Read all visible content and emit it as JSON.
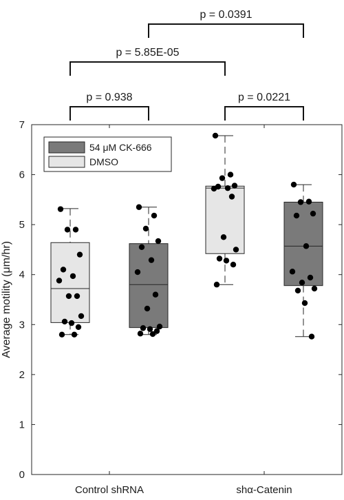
{
  "chart_data": {
    "type": "box",
    "title": "",
    "xlabel": "",
    "ylabel": "Average motility (μm/hr)",
    "ylim": [
      0,
      7
    ],
    "yticks": [
      0,
      1,
      2,
      3,
      4,
      5,
      6,
      7
    ],
    "categories": [
      "Control shRNA",
      "shα-Catenin"
    ],
    "legend": {
      "position": "top-left",
      "entries": [
        {
          "label": "54 μM CK-666",
          "color": "#7a7a7a"
        },
        {
          "label": "DMSO",
          "color": "#e6e6e6"
        }
      ]
    },
    "boxes": [
      {
        "category": "Control shRNA",
        "treatment": "DMSO",
        "color": "#e6e6e6",
        "whisker_low": 2.8,
        "q1": 3.04,
        "median": 3.72,
        "q3": 4.64,
        "whisker_high": 5.32,
        "points": [
          5.31,
          4.9,
          4.9,
          4.4,
          4.1,
          3.97,
          3.88,
          3.57,
          3.57,
          3.17,
          3.06,
          3.03,
          2.95,
          2.8,
          2.8
        ]
      },
      {
        "category": "Control shRNA",
        "treatment": "54 μM CK-666",
        "color": "#7a7a7a",
        "whisker_low": 2.8,
        "q1": 2.94,
        "median": 3.8,
        "q3": 4.62,
        "whisker_high": 5.35,
        "points": [
          5.35,
          5.18,
          4.92,
          4.67,
          4.55,
          4.29,
          4.05,
          3.6,
          3.32,
          2.96,
          2.93,
          2.91,
          2.87,
          2.82,
          2.81
        ]
      },
      {
        "category": "shα-Catenin",
        "treatment": "DMSO",
        "color": "#e6e6e6",
        "whisker_low": 3.8,
        "q1": 4.42,
        "median": 5.73,
        "q3": 5.77,
        "whisker_high": 6.78,
        "points": [
          6.78,
          6.0,
          5.93,
          5.78,
          5.76,
          5.73,
          5.72,
          5.56,
          4.75,
          4.5,
          4.32,
          4.28,
          4.2,
          3.8
        ]
      },
      {
        "category": "shα-Catenin",
        "treatment": "54 μM CK-666",
        "color": "#7a7a7a",
        "whisker_low": 2.76,
        "q1": 3.78,
        "median": 4.57,
        "q3": 5.45,
        "whisker_high": 5.8,
        "points": [
          5.8,
          5.46,
          5.45,
          5.22,
          5.18,
          4.57,
          4.06,
          3.94,
          3.84,
          3.72,
          3.68,
          3.43,
          2.76
        ]
      }
    ],
    "significance": [
      {
        "label": "p = 0.938",
        "from_box": 0,
        "to_box": 1,
        "level": 0
      },
      {
        "label": "p = 0.0221",
        "from_box": 2,
        "to_box": 3,
        "level": 0
      },
      {
        "label": "p = 5.85E-05",
        "from_box": 0,
        "to_box": 2,
        "level": 1
      },
      {
        "label": "p = 0.0391",
        "from_box": 1,
        "to_box": 3,
        "level": 2
      }
    ]
  }
}
